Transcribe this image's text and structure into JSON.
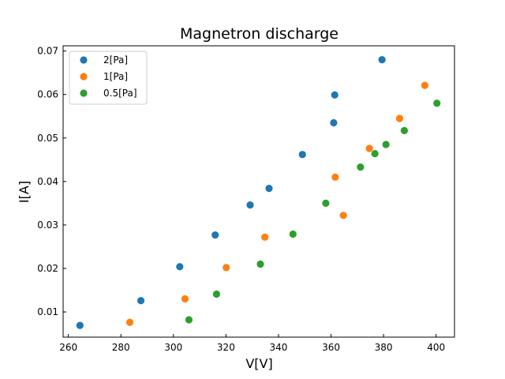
{
  "chart_data": {
    "type": "scatter",
    "title": "Magnetron discharge",
    "xlabel": "V[V]",
    "ylabel": "I[A]",
    "xlim": [
      258,
      407
    ],
    "ylim": [
      0.0042,
      0.0712
    ],
    "xticks": [
      260,
      280,
      300,
      320,
      340,
      360,
      380,
      400
    ],
    "yticks": [
      0.01,
      0.02,
      0.03,
      0.04,
      0.05,
      0.06,
      0.07
    ],
    "xtick_labels": [
      "260",
      "280",
      "300",
      "320",
      "340",
      "360",
      "380",
      "400"
    ],
    "ytick_labels": [
      "0.01",
      "0.02",
      "0.03",
      "0.04",
      "0.05",
      "0.06",
      "0.07"
    ],
    "grid": false,
    "legend_position": "top-left",
    "series": [
      {
        "name": "2[Pa]",
        "color": "#1f77b4",
        "x": [
          264.4,
          287.6,
          302.4,
          315.9,
          329.2,
          336.4,
          349.1,
          361.0,
          361.4,
          379.4
        ],
        "y": [
          0.0069,
          0.0126,
          0.0204,
          0.0277,
          0.0346,
          0.0384,
          0.0462,
          0.0535,
          0.0599,
          0.068
        ]
      },
      {
        "name": "1[Pa]",
        "color": "#ff7f0e",
        "x": [
          283.4,
          304.4,
          320.1,
          334.8,
          361.6,
          364.7,
          374.6,
          386.1,
          395.7
        ],
        "y": [
          0.0076,
          0.013,
          0.0202,
          0.0272,
          0.041,
          0.0322,
          0.0476,
          0.0545,
          0.0621
        ]
      },
      {
        "name": "0.5[Pa]",
        "color": "#2ca02c",
        "x": [
          305.9,
          316.4,
          333.1,
          345.5,
          358.0,
          371.2,
          376.7,
          380.9,
          387.9,
          400.3
        ],
        "y": [
          0.0082,
          0.0141,
          0.021,
          0.0279,
          0.035,
          0.0433,
          0.0464,
          0.0485,
          0.0517,
          0.058
        ]
      }
    ]
  }
}
